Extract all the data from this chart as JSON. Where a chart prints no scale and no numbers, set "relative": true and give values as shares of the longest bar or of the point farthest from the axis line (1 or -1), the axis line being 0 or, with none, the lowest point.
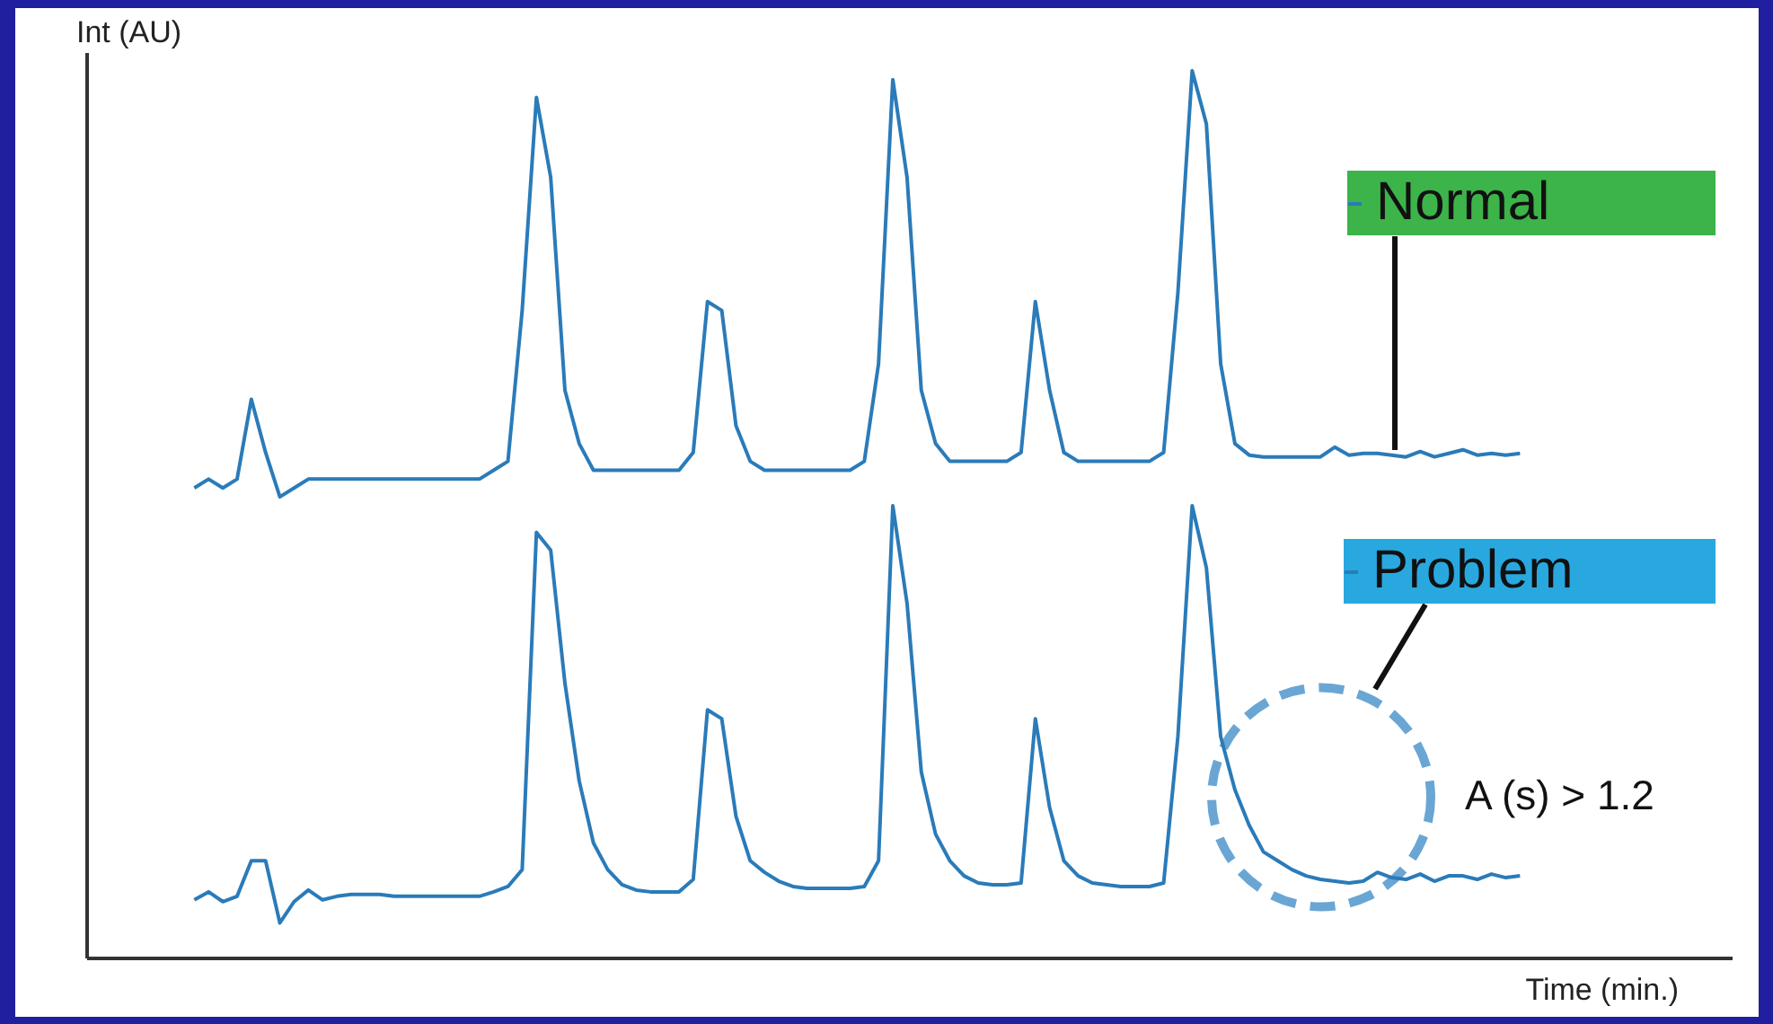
{
  "chart_data": {
    "type": "line",
    "relative": true,
    "xlabel": "Time (min.)",
    "ylabel": "Int (AU)",
    "annotations": [
      "A (s) > 1.2"
    ],
    "legend": "right",
    "categories": [
      null,
      null,
      null,
      null,
      null,
      null,
      null,
      null,
      null,
      null,
      null,
      null,
      null,
      null,
      null,
      null,
      null,
      null,
      null,
      null,
      null,
      null,
      null,
      null,
      null,
      null,
      null,
      null,
      null,
      null,
      null,
      null,
      null,
      null,
      null,
      null,
      null,
      null,
      null,
      null,
      null,
      null,
      null,
      null,
      null,
      null,
      null,
      null,
      null,
      null,
      null,
      null,
      null,
      null,
      null,
      null,
      null,
      null,
      null,
      null,
      null,
      null,
      null,
      null,
      null,
      null,
      null,
      null,
      null,
      null,
      null,
      null,
      null,
      null,
      null,
      null,
      null,
      null,
      null,
      null,
      null,
      null,
      null,
      null,
      null,
      null,
      null,
      null,
      null,
      null,
      null,
      null,
      null,
      null
    ],
    "series": [
      {
        "name": "Normal",
        "color": "#2a7bb9",
        "values": [
          0.53,
          0.54,
          0.53,
          0.54,
          0.63,
          0.57,
          0.52,
          0.53,
          0.54,
          0.54,
          0.54,
          0.54,
          0.54,
          0.54,
          0.54,
          0.54,
          0.54,
          0.54,
          0.54,
          0.54,
          0.54,
          0.55,
          0.56,
          0.73,
          0.97,
          0.88,
          0.64,
          0.58,
          0.55,
          0.55,
          0.55,
          0.55,
          0.55,
          0.55,
          0.55,
          0.57,
          0.74,
          0.73,
          0.6,
          0.56,
          0.55,
          0.55,
          0.55,
          0.55,
          0.55,
          0.55,
          0.55,
          0.56,
          0.67,
          0.99,
          0.88,
          0.64,
          0.58,
          0.56,
          0.56,
          0.56,
          0.56,
          0.56,
          0.57,
          0.74,
          0.64,
          0.57,
          0.56,
          0.56,
          0.56,
          0.56,
          0.56,
          0.56,
          0.57,
          0.75,
          1.0,
          0.94,
          0.67,
          0.58,
          0.567,
          0.565,
          0.565,
          0.565,
          0.565,
          0.565,
          0.576,
          0.567,
          0.569,
          0.569,
          0.567,
          0.565,
          0.571,
          0.565,
          0.569,
          0.573,
          0.567,
          0.569,
          0.567,
          0.569
        ]
      },
      {
        "name": "Problem",
        "color": "#2a7bb9",
        "values": [
          0.066,
          0.075,
          0.064,
          0.07,
          0.11,
          0.11,
          0.04,
          0.064,
          0.077,
          0.066,
          0.07,
          0.072,
          0.072,
          0.072,
          0.07,
          0.07,
          0.07,
          0.07,
          0.07,
          0.07,
          0.07,
          0.075,
          0.081,
          0.1,
          0.48,
          0.46,
          0.31,
          0.2,
          0.13,
          0.1,
          0.083,
          0.077,
          0.075,
          0.075,
          0.075,
          0.089,
          0.28,
          0.27,
          0.16,
          0.11,
          0.097,
          0.087,
          0.081,
          0.079,
          0.079,
          0.079,
          0.079,
          0.081,
          0.11,
          0.51,
          0.4,
          0.21,
          0.14,
          0.11,
          0.093,
          0.085,
          0.083,
          0.083,
          0.085,
          0.27,
          0.17,
          0.11,
          0.093,
          0.085,
          0.083,
          0.081,
          0.081,
          0.081,
          0.085,
          0.25,
          0.51,
          0.44,
          0.25,
          0.19,
          0.15,
          0.12,
          0.11,
          0.1,
          0.093,
          0.089,
          0.087,
          0.085,
          0.087,
          0.097,
          0.091,
          0.089,
          0.095,
          0.087,
          0.093,
          0.093,
          0.089,
          0.095,
          0.091,
          0.093
        ]
      }
    ]
  }
}
